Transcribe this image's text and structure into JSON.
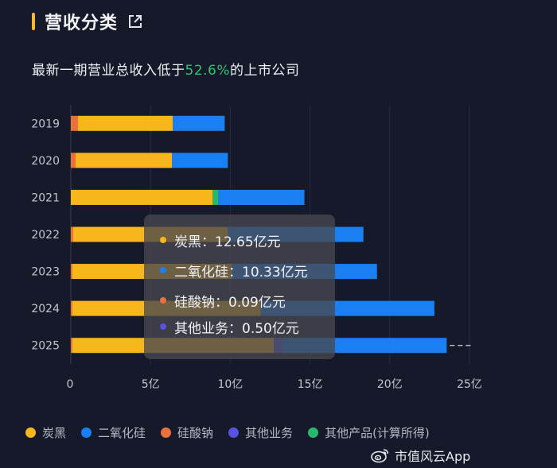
{
  "header": {
    "title": "营收分类"
  },
  "subtitle": {
    "prefix": "最新一期营业总收入低于",
    "highlight": "52.6%",
    "suffix": "的上市公司"
  },
  "colors": {
    "炭黑": "#f7b61c",
    "二氧化硅": "#1a7ff0",
    "硅酸钠": "#e8723c",
    "其他业务": "#5852e0",
    "其他产品(计算所得)": "#27b86e"
  },
  "chart_data": {
    "type": "bar",
    "orientation": "horizontal",
    "stacked": true,
    "categories": [
      "2019",
      "2020",
      "2021",
      "2022",
      "2023",
      "2024",
      "2025"
    ],
    "series": [
      {
        "name": "硅酸钠",
        "values": [
          0.45,
          0.3,
          0.0,
          0.15,
          0.1,
          0.1,
          0.09
        ]
      },
      {
        "name": "炭黑",
        "values": [
          5.95,
          6.05,
          8.9,
          9.7,
          10.0,
          11.8,
          12.65
        ]
      },
      {
        "name": "其他产品(计算所得)",
        "values": [
          0.0,
          0.0,
          0.35,
          0.0,
          0.0,
          0.0,
          0.0
        ]
      },
      {
        "name": "其他业务",
        "values": [
          0.0,
          0.0,
          0.0,
          0.0,
          0.0,
          0.0,
          0.5
        ]
      },
      {
        "name": "二氧化硅",
        "values": [
          3.25,
          3.5,
          5.4,
          8.5,
          9.1,
          10.9,
          10.33
        ]
      }
    ],
    "x_ticks": [
      "0",
      "5亿",
      "10亿",
      "15亿",
      "20亿",
      "25亿"
    ],
    "xlim": [
      0,
      25
    ],
    "grid": true,
    "legend_position": "bottom"
  },
  "tooltip": {
    "category": "2025",
    "rows": [
      {
        "label": "炭黑",
        "value": "12.65亿元",
        "color": "#f7b61c"
      },
      {
        "label": "二氧化硅",
        "value": "10.33亿元",
        "color": "#1a7ff0"
      },
      {
        "label": "硅酸钠",
        "value": "0.09亿元",
        "color": "#e8723c"
      },
      {
        "label": "其他业务",
        "value": "0.50亿元",
        "color": "#5852e0"
      }
    ]
  },
  "legend": [
    {
      "label": "炭黑",
      "color": "#f7b61c"
    },
    {
      "label": "二氧化硅",
      "color": "#1a7ff0"
    },
    {
      "label": "硅酸钠",
      "color": "#e8723c"
    },
    {
      "label": "其他业务",
      "color": "#5852e0"
    },
    {
      "label": "其他产品(计算所得)",
      "color": "#27b86e"
    }
  ],
  "watermark": {
    "text": "市值风云App"
  }
}
